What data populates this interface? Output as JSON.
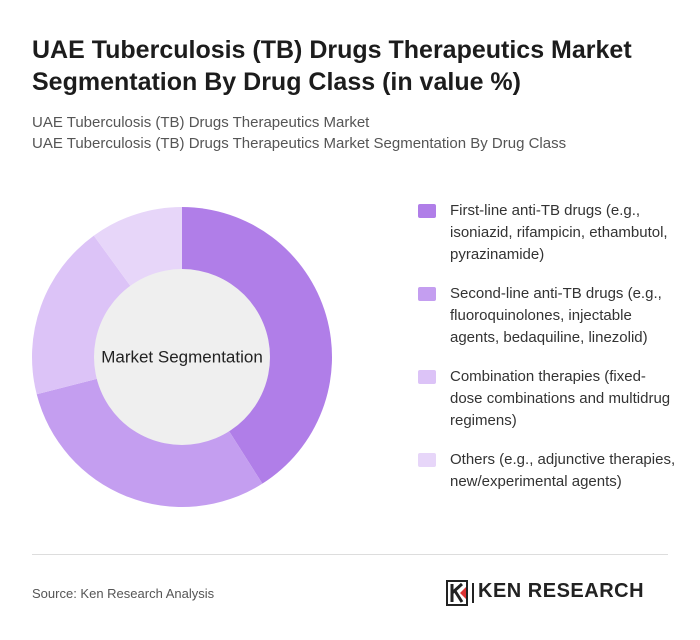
{
  "chart_data": {
    "type": "pie",
    "title": "UAE Tuberculosis (TB) Drugs Therapeutics Market Segmentation By Drug Class (in value %)",
    "subtitle": [
      "UAE Tuberculosis (TB) Drugs Therapeutics Market",
      "UAE Tuberculosis (TB) Drugs Therapeutics Market Segmentation By Drug Class"
    ],
    "center_label": "Market Segmentation",
    "categories": [
      "First-line anti-TB drugs (e.g., isoniazid, rifampicin, ethambutol, pyrazinamide)",
      "Second-line anti-TB drugs (e.g., fluoroquinolones, injectable agents, bedaquiline, linezolid)",
      "Combination therapies (fixed-dose combinations and multidrug regimens)",
      "Others (e.g., adjunctive therapies, new/experimental agents)"
    ],
    "values": [
      41,
      30,
      19,
      10
    ],
    "colors": [
      "#b07ee8",
      "#c49ef0",
      "#dcc3f7",
      "#e7d6f9"
    ]
  },
  "source": "Source: Ken Research Analysis",
  "logo": "KEN RESEARCH"
}
